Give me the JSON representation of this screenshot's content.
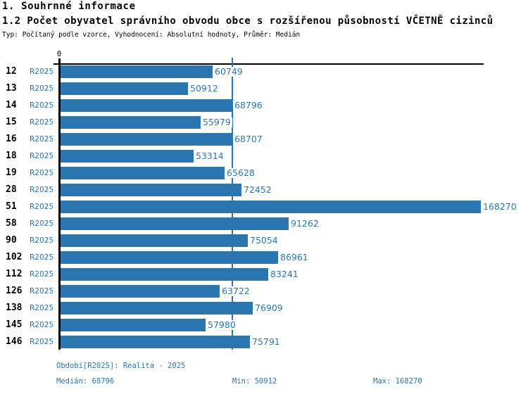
{
  "header": {
    "title": "1. Souhrnné informace",
    "subtitle": "1.2 Počet obyvatel správního obvodu obce s rozšířenou působností VČETNĚ cizinců",
    "meta": "Typ: Počítaný podle vzorce, Vyhodnocení: Absolutní hodnoty, Průměr: Medián"
  },
  "colors": {
    "accent": "#2878b5",
    "bar": "#2b76b0",
    "axis": "#000000"
  },
  "chart_data": {
    "type": "bar",
    "orientation": "horizontal",
    "categories": [
      "12",
      "13",
      "14",
      "15",
      "16",
      "18",
      "19",
      "28",
      "51",
      "58",
      "90",
      "102",
      "112",
      "126",
      "138",
      "145",
      "146"
    ],
    "series_label": "R2025",
    "values": [
      60749,
      50912,
      68796,
      55979,
      68707,
      53314,
      65628,
      72452,
      168270,
      91262,
      75054,
      86961,
      83241,
      63722,
      76909,
      57980,
      75791
    ],
    "title": "1.2 Počet obyvatel správního obvodu obce s rozšířenou působností VČETNĚ cizinců",
    "xlabel": "",
    "ylabel": "",
    "xlim": [
      0,
      168270
    ],
    "x_axis_tick_label": "0",
    "grid": false,
    "legend": "none",
    "median_line_value": 68796
  },
  "footer": {
    "period": "Období[R2025]: Realita - 2025",
    "median": "Medián: 68796",
    "min": "Min: 50912",
    "max": "Max: 168270"
  }
}
